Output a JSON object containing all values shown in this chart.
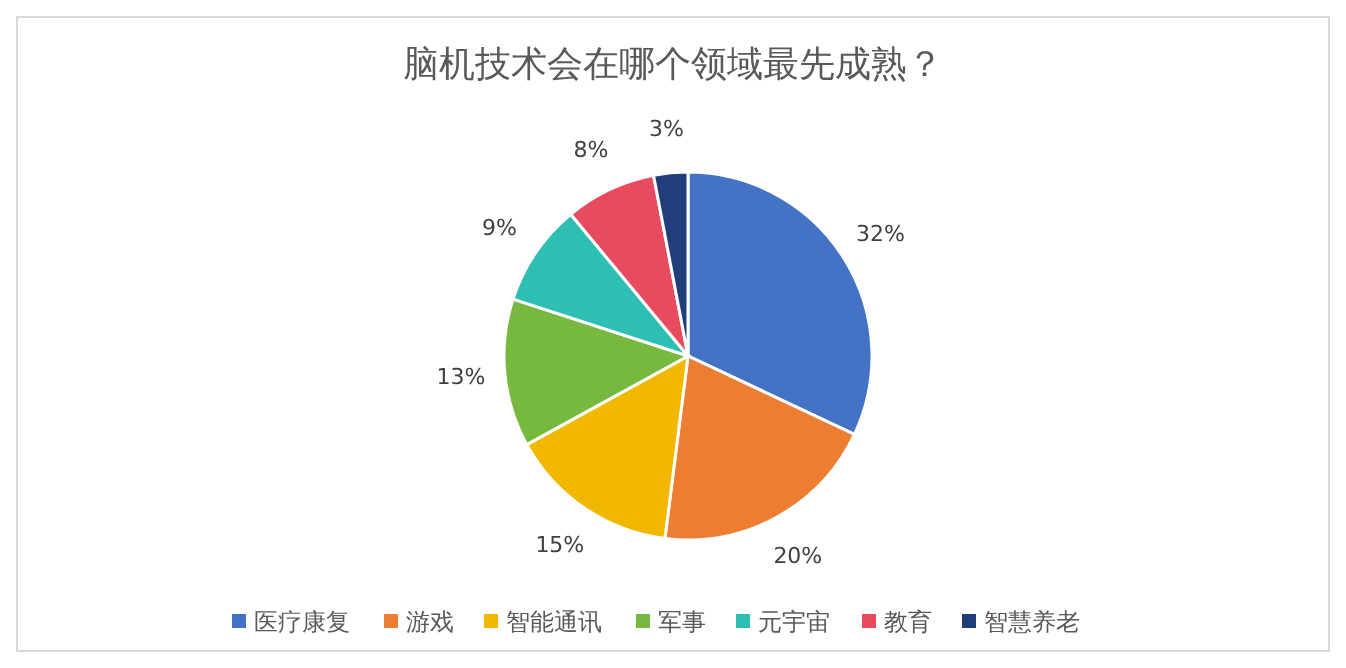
{
  "chart_data": {
    "type": "pie",
    "title": "脑机技术会在哪个领域最先成熟？",
    "categories": [
      "医疗康复",
      "游戏",
      "智能通讯",
      "军事",
      "元宇宙",
      "教育",
      "智慧养老"
    ],
    "values": [
      32,
      20,
      15,
      13,
      9,
      8,
      3
    ],
    "value_labels": [
      "32%",
      "20%",
      "15%",
      "13%",
      "9%",
      "8%",
      "3%"
    ],
    "colors": [
      "#4472c4",
      "#ed7d31",
      "#f2b800",
      "#77b83f",
      "#2ebfb4",
      "#e84a5f",
      "#203f7a"
    ],
    "legend": "bottom"
  }
}
